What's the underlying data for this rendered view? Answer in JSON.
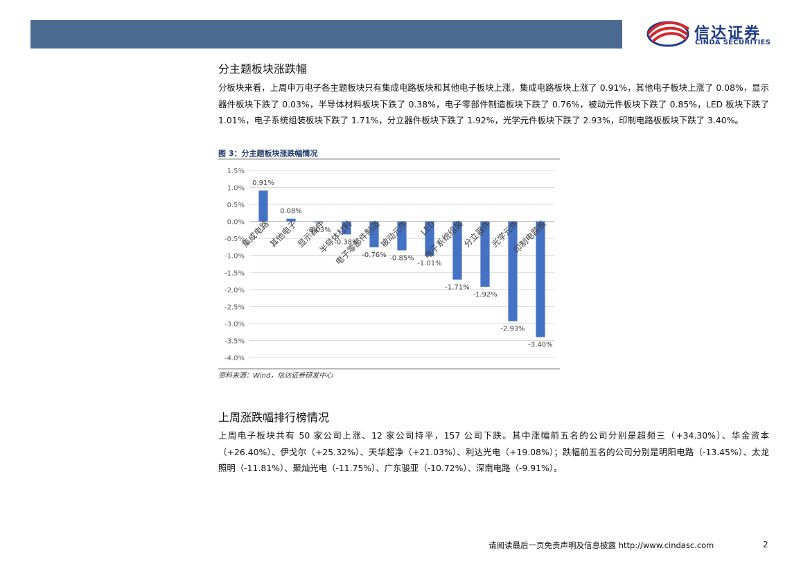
{
  "header": {
    "logo_cn": "信达证券",
    "logo_en": "CINDA SECURITIES",
    "colors": {
      "bar": "#4a6a92",
      "logo_red": "#d4272d",
      "logo_blue": "#1d3a8a"
    }
  },
  "section1": {
    "title": "分主题板块涨跌幅",
    "paragraph": "分板块来看，上周申万电子各主题板块只有集成电路板块和其他电子板块上涨，集成电路板块上涨了 0.91%，其他电子板块上涨了 0.08%，显示器件板块下跌了 0.03%，半导体材料板块下跌了 0.38%，电子零部件制造板块下跌了 0.76%，被动元件板块下跌了 0.85%，LED 板块下跌了 1.01%，电子系统组装板块下跌了 1.71%，分立器件板块下跌了 1.92%，光学元件板块下跌了 2.93%，印制电路板板块下跌了 3.40%。"
  },
  "figure": {
    "title": "图 3：分主题板块涨跌幅情况",
    "source": "资料来源：Wind，信达证券研发中心"
  },
  "chart_data": {
    "type": "bar",
    "categories": [
      "集成电路",
      "其他电子",
      "显示器件",
      "半导体材料",
      "电子零部件制造",
      "被动元件",
      "LED",
      "电子系统组装",
      "分立器件",
      "光学元件",
      "印制电路板"
    ],
    "values": [
      0.91,
      0.08,
      -0.03,
      -0.38,
      -0.76,
      -0.85,
      -1.01,
      -1.71,
      -1.92,
      -2.93,
      -3.4
    ],
    "data_labels": [
      "0.91%",
      "0.08%",
      "-0.03%",
      "-0.38%",
      "-0.76%",
      "-0.85%",
      "-1.01%",
      "-1.71%",
      "-1.92%",
      "-2.93%",
      "-3.40%"
    ],
    "yticks": [
      1.5,
      1.0,
      0.5,
      0.0,
      -0.5,
      -1.0,
      -1.5,
      -2.0,
      -2.5,
      -3.0,
      -3.5,
      -4.0
    ],
    "ytick_labels": [
      "1.5%",
      "1.0%",
      "0.5%",
      "0.0%",
      "-0.5%",
      "-1.0%",
      "-1.5%",
      "-2.0%",
      "-2.5%",
      "-3.0%",
      "-3.5%",
      "-4.0%"
    ],
    "ylim": [
      -4.0,
      1.5
    ],
    "grid": true,
    "bar_color": "#4472c4"
  },
  "section2": {
    "title": "上周涨跌幅排行榜情况",
    "paragraph": "上周电子板块共有 50 家公司上涨、12 家公司持平，157 公司下跌。其中涨幅前五名的公司分别是超频三（+34.30%）、华金资本（+26.40%）、伊戈尔（+25.32%）、天华超净（+21.03%）、利达光电（+19.08%）；跌幅前五名的公司分别是明阳电路（-13.45%）、太龙照明（-11.81%）、聚灿光电（-11.75%）、广东骏亚（-10.72%）、深南电路（-9.91%）。"
  },
  "footer": {
    "text": "请阅读最后一页免责声明及信息披露 http://www.cindasc.com",
    "page": "2"
  }
}
